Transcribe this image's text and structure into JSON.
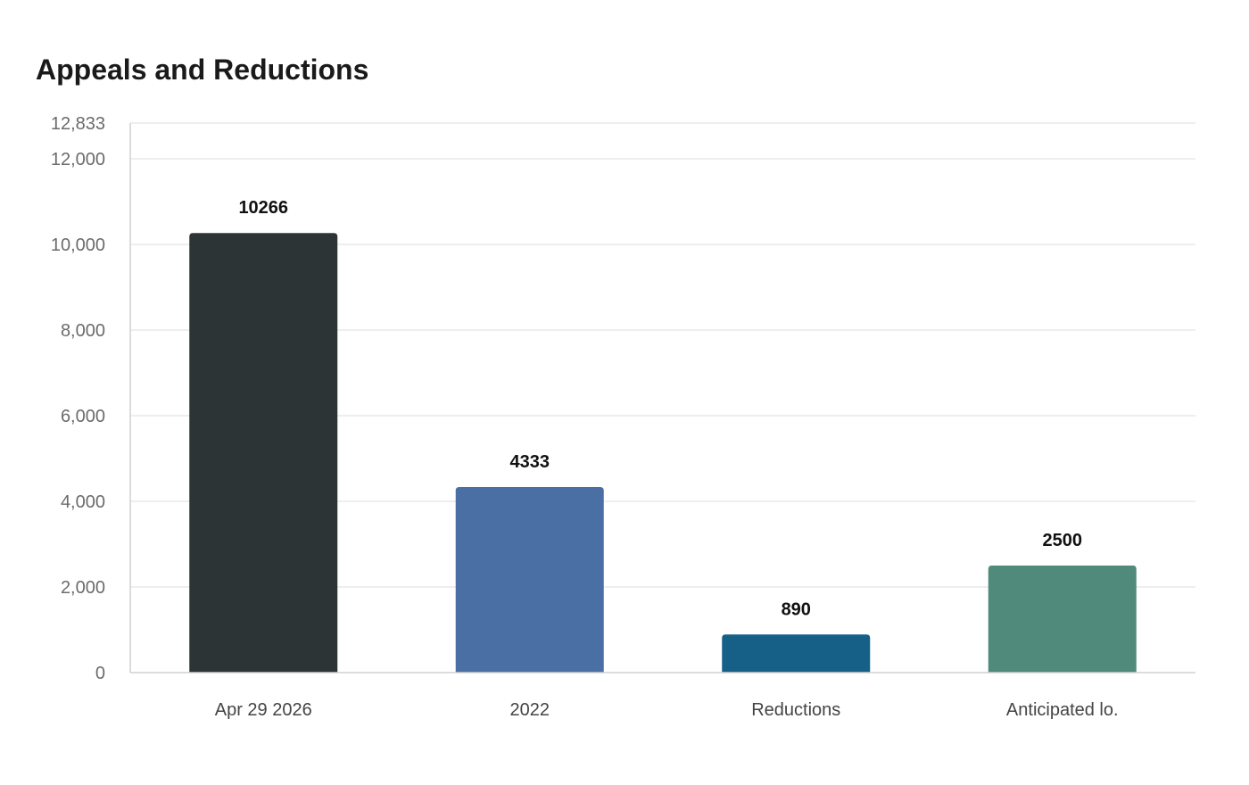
{
  "chart_data": {
    "type": "bar",
    "title": "Appeals and Reductions",
    "xlabel": "",
    "ylabel": "",
    "categories": [
      "Apr 29 2026",
      "2022",
      "Reductions",
      "Anticipated lo."
    ],
    "values": [
      10266,
      4333,
      890,
      2500
    ],
    "data_labels": [
      "10266",
      "4333",
      "890",
      "2500"
    ],
    "colors": [
      "#2d3436",
      "#4a6fa5",
      "#166088",
      "#4f8a7a"
    ],
    "ylim": [
      0,
      12833
    ],
    "yticks": [
      0,
      2000,
      4000,
      6000,
      8000,
      10000,
      12000,
      12833
    ],
    "ytick_labels": [
      "0",
      "2,000",
      "4,000",
      "6,000",
      "8,000",
      "10,000",
      "12,000",
      "12,833"
    ],
    "grid": true,
    "legend": "none"
  }
}
